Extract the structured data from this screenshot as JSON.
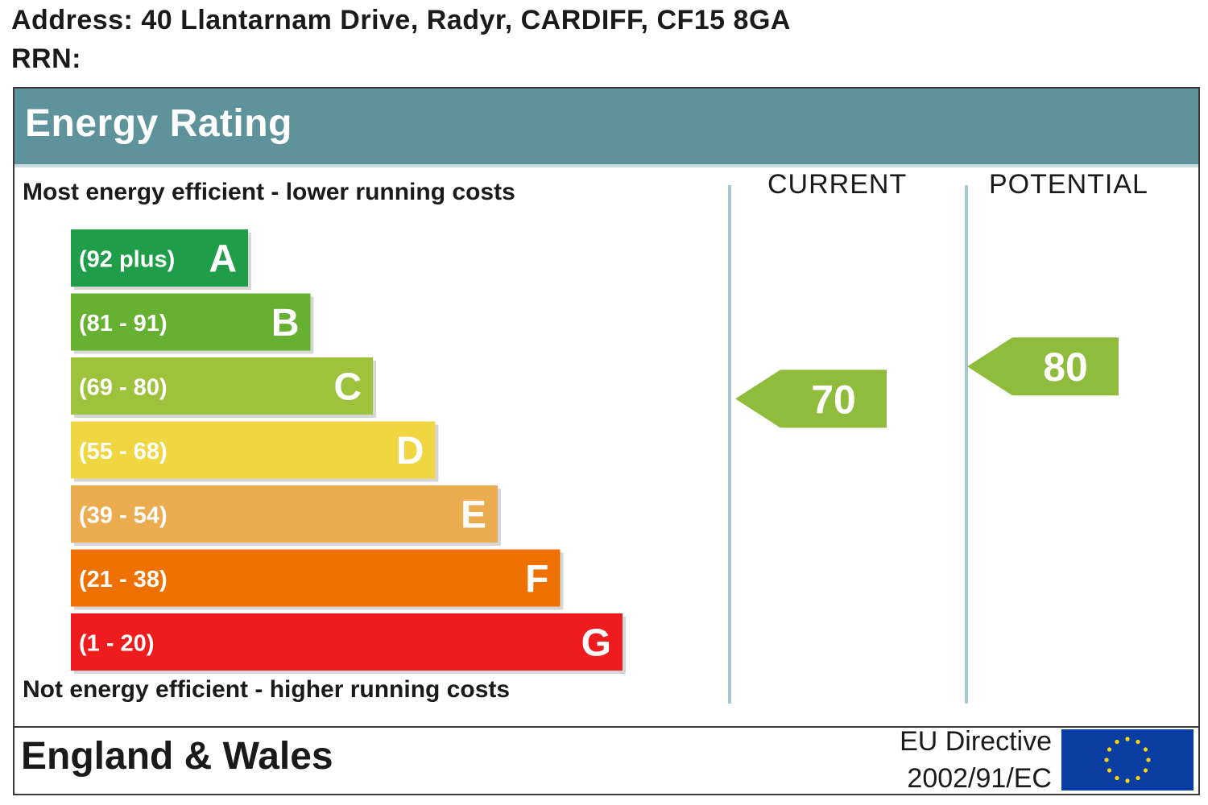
{
  "header": {
    "address": "Address: 40 Llantarnam Drive, Radyr, CARDIFF, CF15 8GA",
    "rrn": "RRN:"
  },
  "panel": {
    "title": "Energy Rating",
    "top_caption": "Most energy efficient - lower running costs",
    "bottom_caption": "Not energy efficient - higher running costs",
    "current_label": "CURRENT",
    "potential_label": "POTENTIAL"
  },
  "footer": {
    "region": "England & Wales",
    "directive_line1": "EU Directive",
    "directive_line2": "2002/91/EC",
    "flag_icon": "eu-flag-icon"
  },
  "chart_data": {
    "type": "bar",
    "title": "Energy Rating",
    "categories": [
      "A",
      "B",
      "C",
      "D",
      "E",
      "F",
      "G"
    ],
    "bands": [
      {
        "letter": "A",
        "range": "(92 plus)",
        "min": 92,
        "max": 100,
        "color": "#1f9d48"
      },
      {
        "letter": "B",
        "range": "(81 - 91)",
        "min": 81,
        "max": 91,
        "color": "#66b032"
      },
      {
        "letter": "C",
        "range": "(69 - 80)",
        "min": 69,
        "max": 80,
        "color": "#9dc23c"
      },
      {
        "letter": "D",
        "range": "(55 - 68)",
        "min": 55,
        "max": 68,
        "color": "#f0d640"
      },
      {
        "letter": "E",
        "range": "(39 - 54)",
        "min": 39,
        "max": 54,
        "color": "#ebab4f"
      },
      {
        "letter": "F",
        "range": "(21 - 38)",
        "min": 21,
        "max": 38,
        "color": "#ee7100"
      },
      {
        "letter": "G",
        "range": "(1 - 20)",
        "min": 1,
        "max": 20,
        "color": "#ee1c1e"
      }
    ],
    "current": {
      "value": 70,
      "band": "C",
      "color": "#8fbc3c"
    },
    "potential": {
      "value": 80,
      "band": "C",
      "color": "#8fbc3c"
    }
  }
}
